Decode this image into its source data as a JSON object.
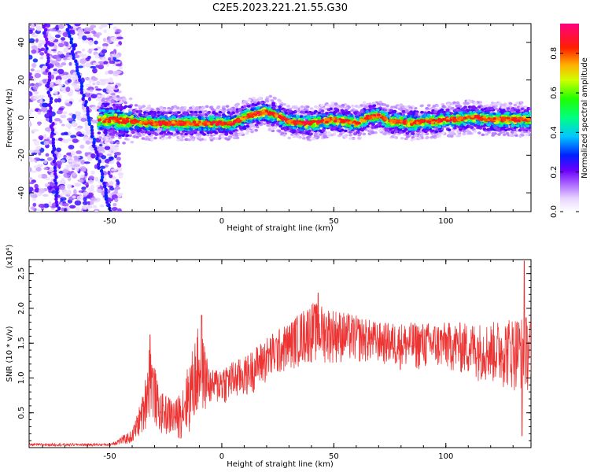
{
  "title": "C2E5.2023.221.21.55.G30",
  "chart_data": [
    {
      "type": "heatmap",
      "xlabel": "Height of straight line (km)",
      "ylabel": "Frequency (Hz)",
      "xlim": [
        -86,
        138
      ],
      "ylim": [
        -50,
        50
      ],
      "xticks": [
        -50,
        0,
        50,
        100
      ],
      "yticks": [
        -40,
        -20,
        0,
        20,
        40
      ],
      "ridge": [
        {
          "x": -50,
          "y": -1
        },
        {
          "x": -40,
          "y": -2
        },
        {
          "x": -30,
          "y": -3
        },
        {
          "x": -20,
          "y": -3
        },
        {
          "x": -10,
          "y": -3
        },
        {
          "x": 0,
          "y": -3
        },
        {
          "x": 5,
          "y": -3
        },
        {
          "x": 10,
          "y": 0
        },
        {
          "x": 15,
          "y": 2
        },
        {
          "x": 20,
          "y": 3
        },
        {
          "x": 25,
          "y": 1
        },
        {
          "x": 30,
          "y": -2
        },
        {
          "x": 35,
          "y": -3
        },
        {
          "x": 40,
          "y": -3
        },
        {
          "x": 45,
          "y": -2
        },
        {
          "x": 50,
          "y": -1
        },
        {
          "x": 55,
          "y": -2
        },
        {
          "x": 60,
          "y": -3
        },
        {
          "x": 65,
          "y": 0
        },
        {
          "x": 70,
          "y": 1
        },
        {
          "x": 75,
          "y": -2
        },
        {
          "x": 80,
          "y": -2
        },
        {
          "x": 85,
          "y": -3
        },
        {
          "x": 90,
          "y": -2
        },
        {
          "x": 95,
          "y": -2
        },
        {
          "x": 100,
          "y": -1
        },
        {
          "x": 105,
          "y": -1
        },
        {
          "x": 110,
          "y": 0
        },
        {
          "x": 115,
          "y": 0
        },
        {
          "x": 120,
          "y": -1
        },
        {
          "x": 125,
          "y": -1
        },
        {
          "x": 130,
          "y": -1
        },
        {
          "x": 137,
          "y": -1
        }
      ],
      "diagonal_streaks": [
        {
          "from": {
            "x": -69,
            "y": 50
          },
          "to": {
            "x": -50,
            "y": -50
          }
        },
        {
          "from": {
            "x": -79,
            "y": 50
          },
          "to": {
            "x": -73,
            "y": -50
          }
        }
      ],
      "colorbar": {
        "label": "Normalized spectral amplitude",
        "ticks": [
          0.0,
          0.2,
          0.4,
          0.6,
          0.8
        ],
        "range": [
          0,
          0.95
        ]
      }
    },
    {
      "type": "line",
      "xlabel": "Height of straight line (km)",
      "ylabel": "SNR (10 * v/v)",
      "y_multiplier": "(x10⁴)",
      "xlim": [
        -86,
        138
      ],
      "ylim": [
        0,
        2.7
      ],
      "xticks": [
        -50,
        0,
        50,
        100
      ],
      "yticks": [
        0.5,
        1.0,
        1.5,
        2.0,
        2.5
      ],
      "series": [
        {
          "color": "#ee3333",
          "envelope": [
            {
              "x": -86,
              "low": 0.02,
              "high": 0.06
            },
            {
              "x": -50,
              "low": 0.02,
              "high": 0.06
            },
            {
              "x": -40,
              "low": 0.05,
              "high": 0.25
            },
            {
              "x": -35,
              "low": 0.2,
              "high": 0.8
            },
            {
              "x": -32,
              "low": 0.4,
              "high": 1.6
            },
            {
              "x": -28,
              "low": 0.2,
              "high": 0.8
            },
            {
              "x": -20,
              "low": 0.1,
              "high": 0.7
            },
            {
              "x": -15,
              "low": 0.15,
              "high": 1.2
            },
            {
              "x": -10,
              "low": 0.4,
              "high": 1.8
            },
            {
              "x": -5,
              "low": 0.6,
              "high": 1.1
            },
            {
              "x": 0,
              "low": 0.6,
              "high": 1.2
            },
            {
              "x": 10,
              "low": 0.7,
              "high": 1.3
            },
            {
              "x": 20,
              "low": 0.9,
              "high": 1.6
            },
            {
              "x": 30,
              "low": 1.1,
              "high": 1.8
            },
            {
              "x": 40,
              "low": 1.2,
              "high": 2.1
            },
            {
              "x": 50,
              "low": 1.2,
              "high": 2.0
            },
            {
              "x": 60,
              "low": 1.2,
              "high": 1.9
            },
            {
              "x": 70,
              "low": 1.2,
              "high": 1.8
            },
            {
              "x": 80,
              "low": 1.1,
              "high": 1.8
            },
            {
              "x": 90,
              "low": 1.1,
              "high": 1.8
            },
            {
              "x": 100,
              "low": 1.1,
              "high": 1.8
            },
            {
              "x": 110,
              "low": 1.0,
              "high": 1.8
            },
            {
              "x": 120,
              "low": 0.9,
              "high": 1.8
            },
            {
              "x": 130,
              "low": 0.8,
              "high": 1.9
            },
            {
              "x": 138,
              "low": 0.8,
              "high": 1.9
            }
          ],
          "peaks": [
            {
              "x": -32,
              "y": 1.62
            },
            {
              "x": -9,
              "y": 1.9
            },
            {
              "x": 43,
              "y": 2.22
            },
            {
              "x": 135,
              "y": 2.68
            },
            {
              "x": 134,
              "y": 0.17
            }
          ]
        }
      ]
    }
  ]
}
